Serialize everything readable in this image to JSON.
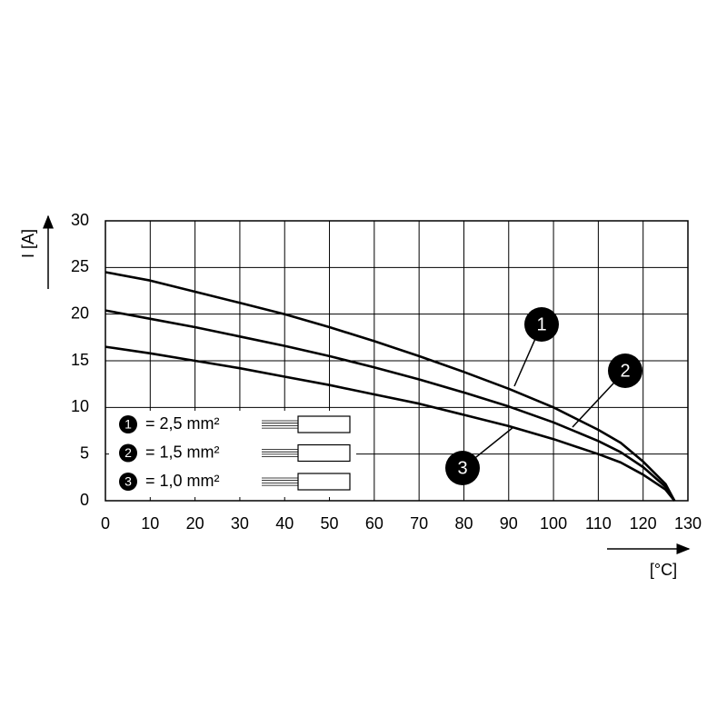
{
  "chart_data": {
    "type": "line",
    "x_label": "[°C]",
    "y_label": "I [A]",
    "x": [
      0,
      10,
      20,
      30,
      40,
      50,
      60,
      70,
      80,
      90,
      100,
      110,
      115,
      120,
      125,
      127
    ],
    "series": [
      {
        "name": "= 2,5 mm²",
        "label": "1",
        "color": "#000000",
        "values": [
          24.5,
          23.6,
          22.4,
          21.2,
          20,
          18.6,
          17.1,
          15.5,
          13.8,
          12.0,
          10.0,
          7.6,
          6.2,
          4.2,
          1.8,
          0
        ]
      },
      {
        "name": "= 1,5 mm²",
        "label": "2",
        "color": "#000000",
        "values": [
          20.4,
          19.5,
          18.6,
          17.6,
          16.6,
          15.5,
          14.3,
          13.0,
          11.6,
          10.1,
          8.4,
          6.4,
          5.2,
          3.6,
          1.5,
          0
        ]
      },
      {
        "name": "= 1,0 mm²",
        "label": "3",
        "color": "#000000",
        "values": [
          16.5,
          15.8,
          15.0,
          14.2,
          13.3,
          12.4,
          11.4,
          10.4,
          9.2,
          8.0,
          6.6,
          5.0,
          4.1,
          2.8,
          1.2,
          0
        ]
      }
    ],
    "xlim": [
      0,
      130
    ],
    "ylim": [
      0,
      30
    ],
    "xticks": [
      0,
      10,
      20,
      30,
      40,
      50,
      60,
      70,
      80,
      90,
      100,
      110,
      120,
      130
    ],
    "yticks": [
      0,
      5,
      10,
      15,
      20,
      25,
      30
    ],
    "grid": true
  }
}
